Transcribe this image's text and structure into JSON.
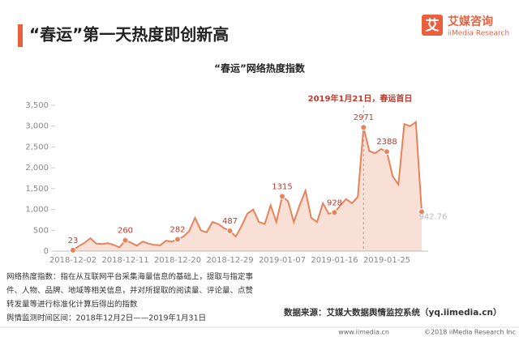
{
  "header": {
    "title": "“春运”第一天热度即创新高"
  },
  "logo": {
    "icon": "艾",
    "name": "艾媒咨询",
    "english": "iiMedia Research"
  },
  "chart_data": {
    "type": "line",
    "title": "“春运”网络热度指数",
    "categories": [
      "2018-12-02",
      null,
      null,
      null,
      null,
      null,
      null,
      null,
      null,
      "2018-12-11",
      null,
      null,
      null,
      null,
      null,
      null,
      null,
      null,
      "2018-12-20",
      null,
      null,
      null,
      null,
      null,
      null,
      null,
      null,
      "2018-12-29",
      null,
      null,
      null,
      null,
      null,
      null,
      null,
      null,
      "2019-01-07",
      null,
      null,
      null,
      null,
      null,
      null,
      null,
      null,
      "2019-01-16",
      null,
      null,
      null,
      null,
      null,
      null,
      null,
      null,
      "2019-01-25",
      null,
      null,
      null,
      null,
      null,
      null
    ],
    "series": [
      {
        "name": "网络热度指数",
        "color": "#e8825a",
        "values": [
          23,
          120,
          200,
          310,
          180,
          170,
          190,
          150,
          90,
          260,
          200,
          130,
          230,
          180,
          150,
          140,
          250,
          230,
          282,
          350,
          480,
          800,
          500,
          450,
          700,
          650,
          550,
          487,
          350,
          600,
          900,
          1000,
          700,
          650,
          1100,
          700,
          1315,
          1200,
          700,
          1100,
          1450,
          800,
          700,
          1150,
          900,
          928,
          1100,
          1250,
          1150,
          1300,
          2971,
          2400,
          2350,
          2450,
          2388,
          1800,
          1600,
          3050,
          3000,
          3100,
          942.76
        ],
        "value_labels": [
          "23",
          null,
          null,
          null,
          null,
          null,
          null,
          null,
          null,
          "260",
          null,
          null,
          null,
          null,
          null,
          null,
          null,
          null,
          "282",
          null,
          null,
          null,
          null,
          null,
          null,
          null,
          null,
          "487",
          null,
          null,
          null,
          null,
          null,
          null,
          null,
          null,
          "1315",
          null,
          null,
          null,
          null,
          null,
          null,
          null,
          null,
          "928",
          null,
          null,
          null,
          null,
          "2971",
          null,
          null,
          null,
          "2388",
          null,
          null,
          null,
          null,
          null,
          "942.76"
        ]
      }
    ],
    "ylim": [
      0,
      3500
    ],
    "yticks": [
      0,
      {
        "value": 500,
        "label": "500"
      },
      {
        "value": 1000,
        "label": "1,000"
      },
      {
        "value": 1500,
        "label": "1,500"
      },
      {
        "value": 2000,
        "label": "2,000"
      },
      {
        "value": 2500,
        "label": "2,500"
      },
      {
        "value": 3000,
        "label": "3,000"
      },
      {
        "value": 3500,
        "label": "3,500"
      }
    ],
    "annotation": "2019年1月21日，春运首日"
  },
  "notes": [
    "网络热度指数：指在从互联网平台采集海量信息的基础上，提取与指定事",
    "件、人物、品牌、地域等相关信息，并对所提取的阅读量、评论量、点赞",
    "转发量等进行标准化计算后得出的指数",
    "舆情监测时间区间：2018年12月2日——2019年1月31日"
  ],
  "source": "数据来源：艾媒大数据舆情监控系统（yq.iimedia.cn）",
  "footer": {
    "site": "www.iimedia.cn",
    "copyright": "©2018  iiMedia Research Inc"
  }
}
